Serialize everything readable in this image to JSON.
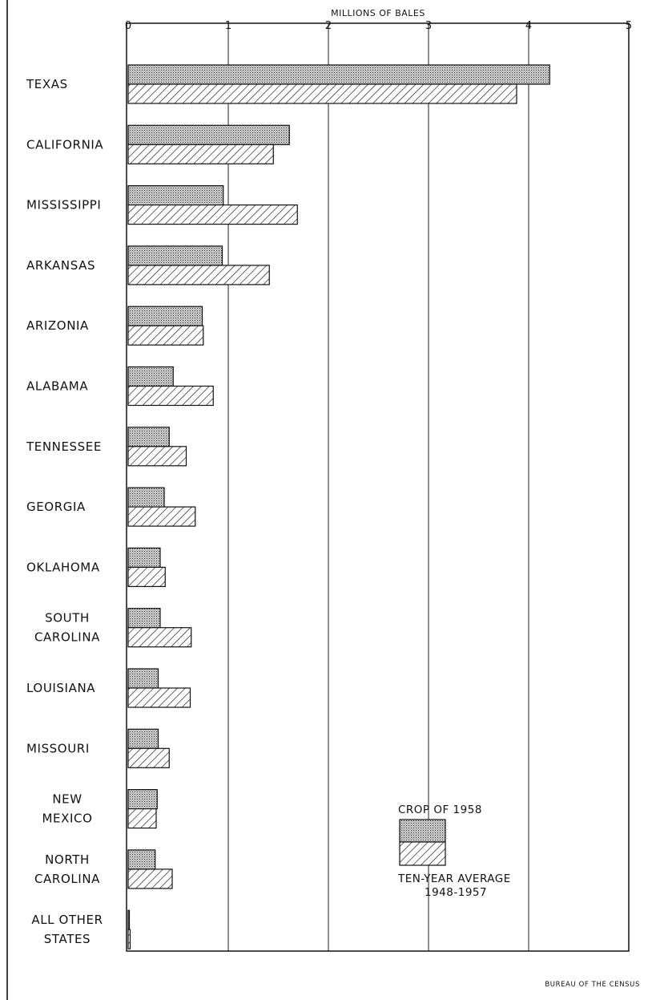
{
  "chart_data": {
    "type": "bar",
    "orientation": "horizontal",
    "xlabel": "MILLIONS OF BALES",
    "xlim": [
      0,
      5
    ],
    "xticks": [
      "0",
      "1",
      "2",
      "3",
      "4",
      "5"
    ],
    "grid": true,
    "categories": [
      [
        "TEXAS"
      ],
      [
        "CALIFORNIA"
      ],
      [
        "MISSISSIPPI"
      ],
      [
        "ARKANSAS"
      ],
      [
        "ARIZONIA"
      ],
      [
        "ALABAMA"
      ],
      [
        "TENNESSEE"
      ],
      [
        "GEORGIA"
      ],
      [
        "OKLAHOMA"
      ],
      [
        "SOUTH",
        "CAROLINA"
      ],
      [
        "LOUISIANA"
      ],
      [
        "MISSOURI"
      ],
      [
        "NEW",
        "MEXICO"
      ],
      [
        "NORTH",
        "CAROLINA"
      ],
      [
        "ALL OTHER",
        "STATES"
      ]
    ],
    "series": [
      {
        "name": "CROP OF 1958",
        "pattern": "stipple",
        "values": [
          4.21,
          1.61,
          0.95,
          0.94,
          0.74,
          0.45,
          0.41,
          0.36,
          0.32,
          0.32,
          0.3,
          0.3,
          0.29,
          0.27,
          0.01
        ]
      },
      {
        "name": "TEN-YEAR AVERAGE 1948-1957",
        "pattern": "hatch",
        "values": [
          3.88,
          1.45,
          1.69,
          1.41,
          0.75,
          0.85,
          0.58,
          0.67,
          0.37,
          0.63,
          0.62,
          0.41,
          0.28,
          0.44,
          0.02
        ]
      }
    ],
    "legend": {
      "placement": "bottom-right",
      "items": [
        {
          "lines": [
            "CROP OF 1958"
          ],
          "pattern": "stipple"
        },
        {
          "lines": [
            "TEN-YEAR AVERAGE",
            "1948-1957"
          ],
          "pattern": "hatch"
        }
      ]
    },
    "source": "BUREAU OF THE CENSUS"
  }
}
